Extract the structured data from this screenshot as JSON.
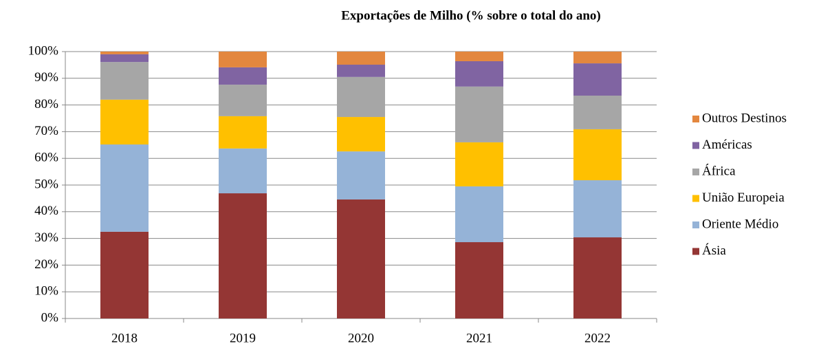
{
  "chart_data": {
    "type": "stacked_bar",
    "title": "Exportações de Milho (% sobre o total do ano)",
    "categories": [
      "2018",
      "2019",
      "2020",
      "2021",
      "2022"
    ],
    "series": [
      {
        "name": "Ásia",
        "color": "#943634",
        "values": [
          32.5,
          46.9,
          44.6,
          28.6,
          30.4
        ]
      },
      {
        "name": "Oriente Médio",
        "color": "#95b3d7",
        "values": [
          32.7,
          16.8,
          18.0,
          20.9,
          21.4
        ]
      },
      {
        "name": "União Europeia",
        "color": "#ffc000",
        "values": [
          16.8,
          12.1,
          12.9,
          16.5,
          19.1
        ]
      },
      {
        "name": "África",
        "color": "#a6a6a6",
        "values": [
          14.1,
          11.8,
          15.0,
          20.9,
          12.6
        ]
      },
      {
        "name": "Américas",
        "color": "#8064a2",
        "values": [
          2.9,
          6.5,
          4.6,
          9.5,
          12.1
        ]
      },
      {
        "name": "Outros Destinos",
        "color": "#e3873f",
        "values": [
          1.0,
          5.9,
          4.9,
          3.6,
          4.4
        ]
      }
    ],
    "ylim": [
      0,
      100
    ],
    "yticks": [
      {
        "value": 0,
        "label": "0%"
      },
      {
        "value": 10,
        "label": "10%"
      },
      {
        "value": 20,
        "label": "20%"
      },
      {
        "value": 30,
        "label": "30%"
      },
      {
        "value": 40,
        "label": "40%"
      },
      {
        "value": 50,
        "label": "50%"
      },
      {
        "value": 60,
        "label": "60%"
      },
      {
        "value": 70,
        "label": "70%"
      },
      {
        "value": 80,
        "label": "80%"
      },
      {
        "value": 90,
        "label": "90%"
      },
      {
        "value": 100,
        "label": "100%"
      }
    ],
    "grid": true,
    "legend": "right"
  }
}
